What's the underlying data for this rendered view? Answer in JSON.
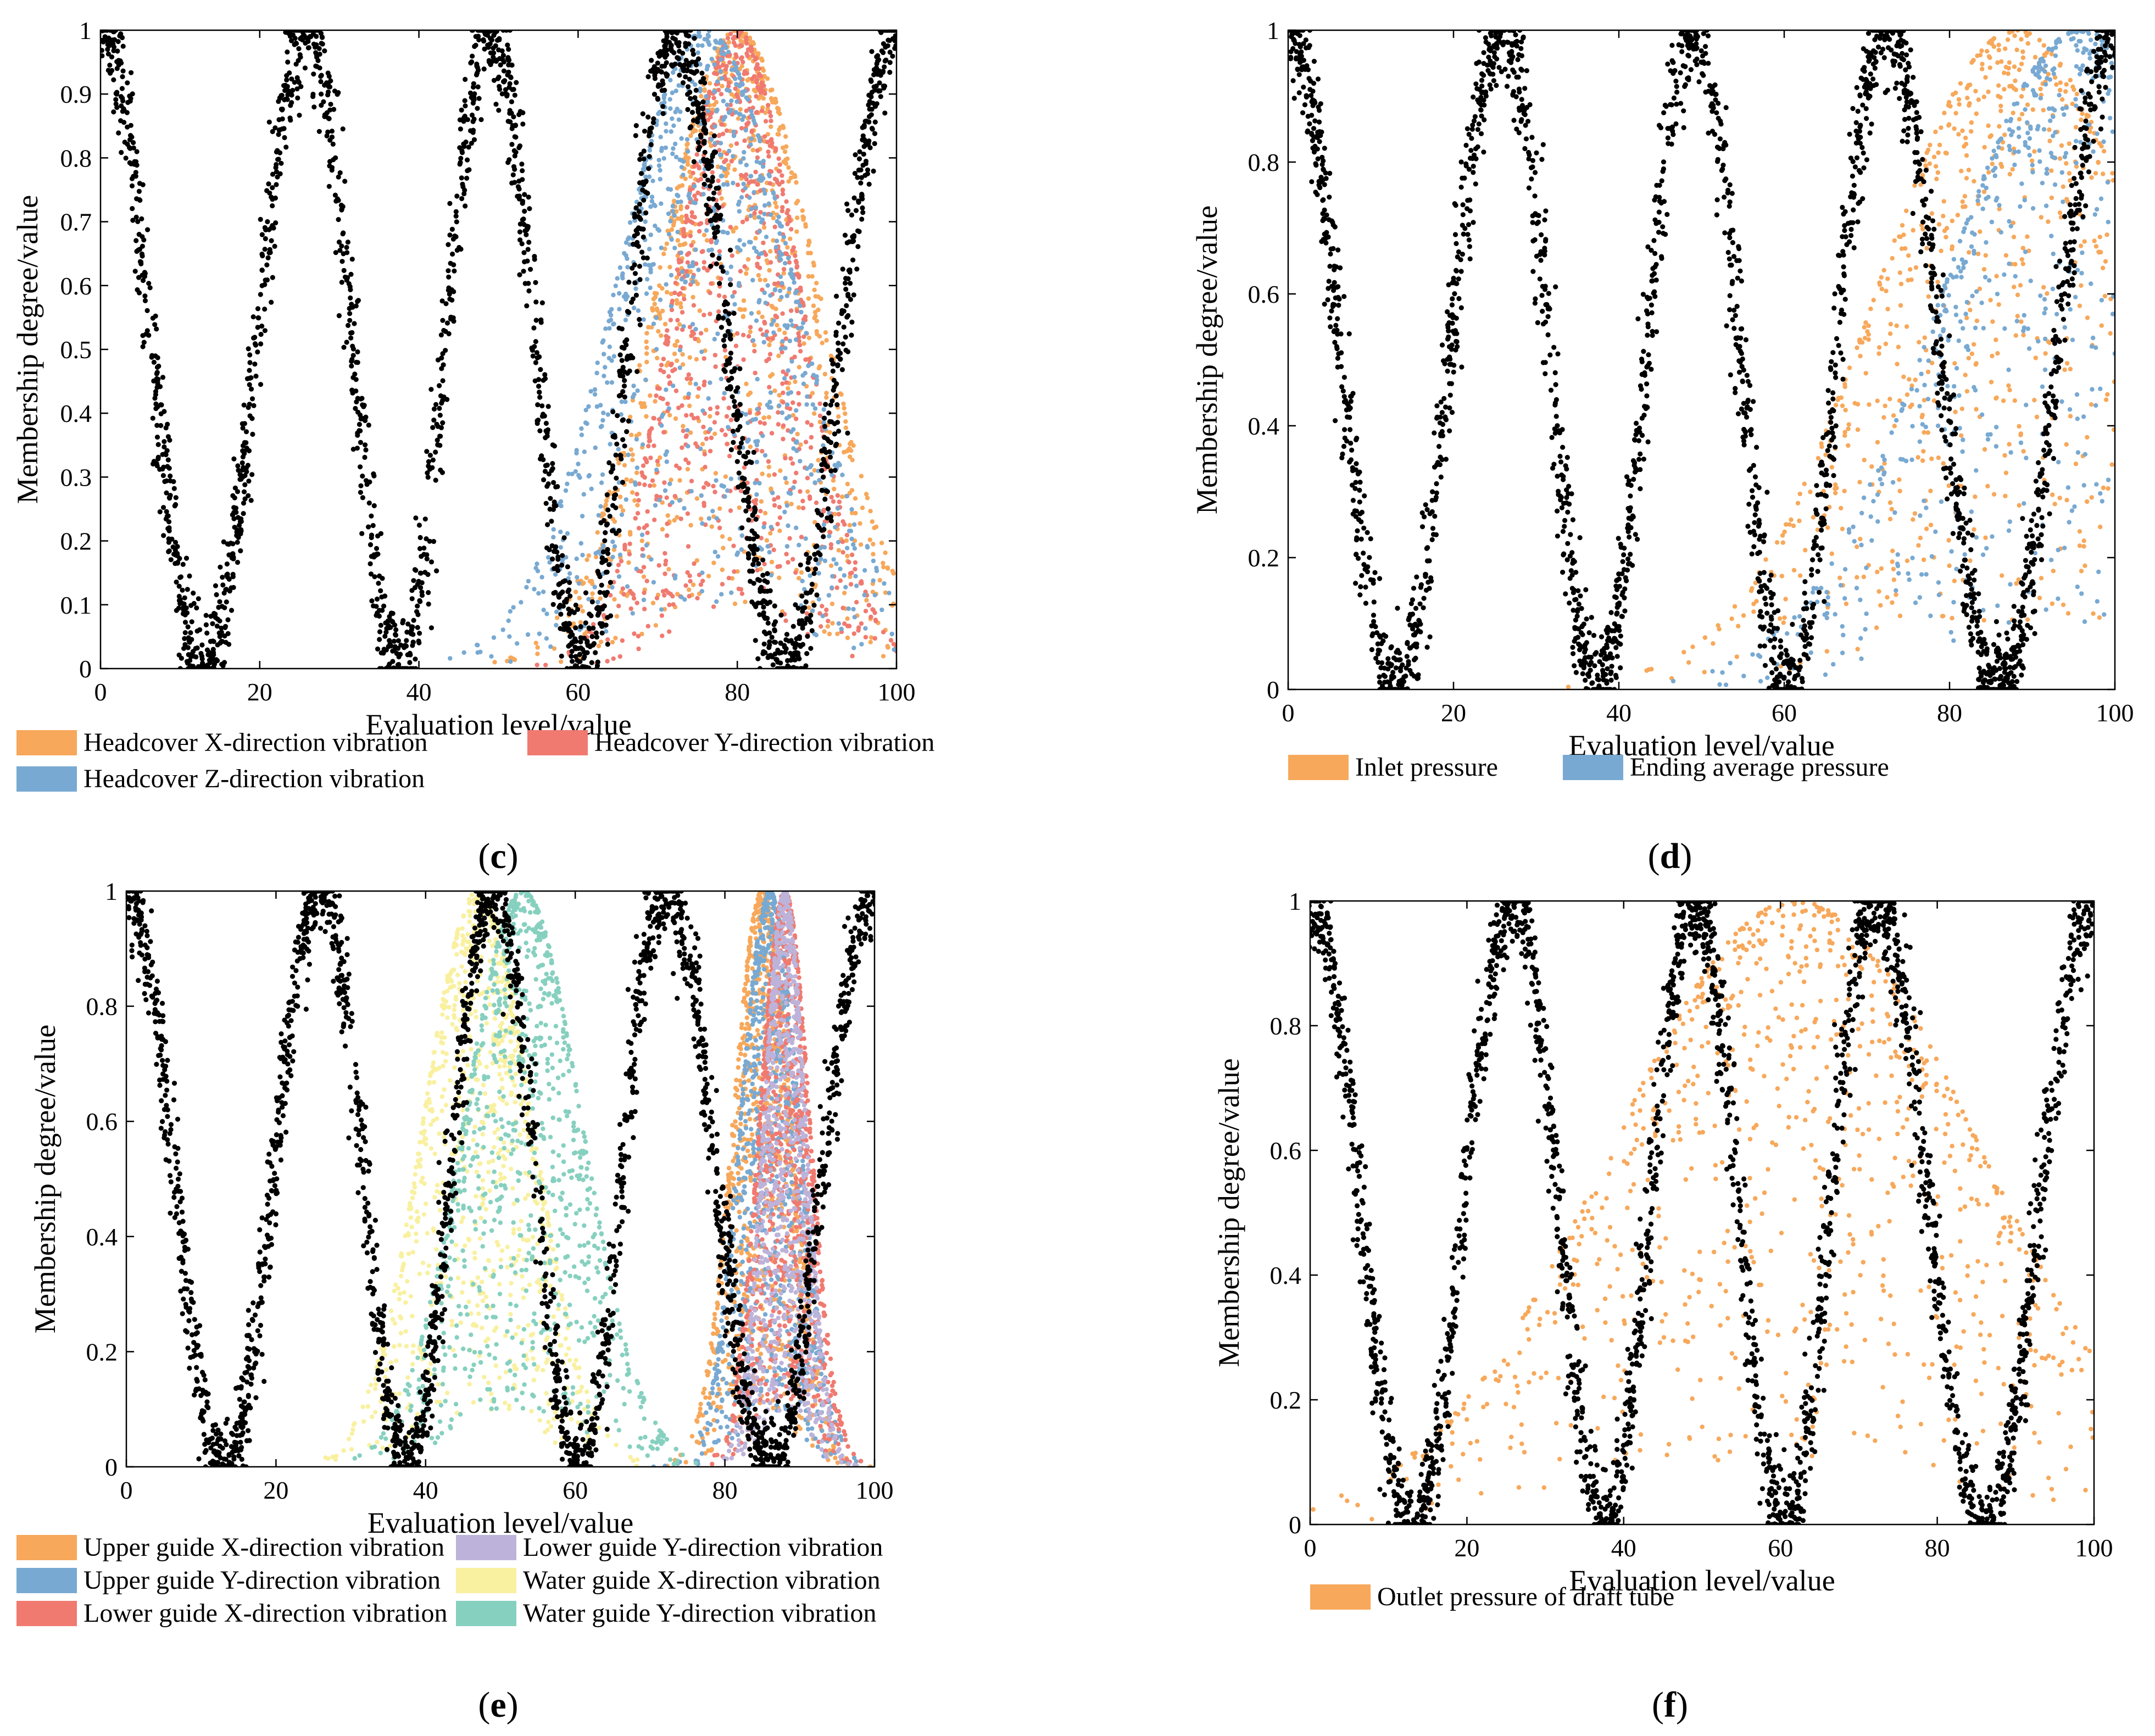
{
  "chart_data": [
    {
      "type": "scatter",
      "panel_label": "c",
      "xlabel": "Evaluation level/value",
      "ylabel": "Membership degree/value",
      "xlim": [
        0,
        100
      ],
      "ylim": [
        0,
        1
      ],
      "x_ticks": [
        "0",
        "20",
        "40",
        "60",
        "80",
        "100"
      ],
      "y_ticks": [
        "0",
        "0.1",
        "0.2",
        "0.3",
        "0.4",
        "0.5",
        "0.6",
        "0.7",
        "0.8",
        "0.9",
        "1"
      ],
      "grid": false,
      "legend_position": "bottom",
      "reference_curve": {
        "color": "#000000",
        "peaks": [
          0,
          26,
          49,
          72,
          100
        ],
        "troughs": [
          13,
          38,
          60,
          85
        ]
      },
      "series": [
        {
          "name": "Headcover X-direction vibration",
          "color": "#F7A85A",
          "center": 80,
          "spread": 18
        },
        {
          "name": "Headcover Y-direction vibration",
          "color": "#F07A70",
          "center": 80,
          "spread": 14
        },
        {
          "name": "Headcover Z-direction vibration",
          "color": "#78A9D2",
          "center": 76,
          "spread": 20
        }
      ]
    },
    {
      "type": "scatter",
      "panel_label": "d",
      "xlabel": "Evaluation level/value",
      "ylabel": "Membership degree/value",
      "xlim": [
        0,
        100
      ],
      "ylim": [
        0,
        1
      ],
      "x_ticks": [
        "0",
        "20",
        "40",
        "60",
        "80",
        "100"
      ],
      "y_ticks": [
        "0",
        "0.2",
        "0.4",
        "0.6",
        "0.8",
        "1"
      ],
      "grid": false,
      "legend_position": "bottom",
      "reference_curve": {
        "color": "#000000",
        "peaks": [
          0,
          26,
          49,
          72,
          100
        ],
        "troughs": [
          13,
          38,
          60,
          85
        ]
      },
      "series": [
        {
          "name": "Inlet pressure",
          "color": "#F7A85A",
          "center": 88,
          "spread": 30
        },
        {
          "name": "Ending average pressure",
          "color": "#78A9D2",
          "center": 96,
          "spread": 30
        }
      ]
    },
    {
      "type": "scatter",
      "panel_label": "e",
      "xlabel": "Evaluation level/value",
      "ylabel": "Membership degree/value",
      "xlim": [
        0,
        100
      ],
      "ylim": [
        0,
        1
      ],
      "x_ticks": [
        "0",
        "20",
        "40",
        "60",
        "80",
        "100"
      ],
      "y_ticks": [
        "0",
        "0.2",
        "0.4",
        "0.6",
        "0.8",
        "1"
      ],
      "grid": false,
      "legend_position": "bottom",
      "reference_curve": {
        "color": "#000000",
        "peaks": [
          0,
          26,
          49,
          72,
          100
        ],
        "troughs": [
          13,
          38,
          60,
          85
        ]
      },
      "series": [
        {
          "name": "Upper guide X-direction vibration",
          "color": "#F7A85A",
          "center": 85,
          "spread": 7
        },
        {
          "name": "Upper guide Y-direction vibration",
          "color": "#78A9D2",
          "center": 86,
          "spread": 7
        },
        {
          "name": "Lower guide X-direction vibration",
          "color": "#F07A70",
          "center": 88,
          "spread": 6
        },
        {
          "name": "Lower guide Y-direction vibration",
          "color": "#BDB3DA",
          "center": 88,
          "spread": 5
        },
        {
          "name": "Water guide X-direction vibration",
          "color": "#F9F0A0",
          "center": 47,
          "spread": 13
        },
        {
          "name": "Water guide Y-direction vibration",
          "color": "#86D0BF",
          "center": 53,
          "spread": 14
        }
      ]
    },
    {
      "type": "scatter",
      "panel_label": "f",
      "xlabel": "Evaluation level/value",
      "ylabel": "Membership degree/value",
      "xlim": [
        0,
        100
      ],
      "ylim": [
        0,
        1
      ],
      "x_ticks": [
        "0",
        "20",
        "40",
        "60",
        "80",
        "100"
      ],
      "y_ticks": [
        "0",
        "0.2",
        "0.4",
        "0.6",
        "0.8",
        "1"
      ],
      "grid": false,
      "legend_position": "bottom",
      "reference_curve": {
        "color": "#000000",
        "peaks": [
          0,
          26,
          49,
          72,
          100
        ],
        "troughs": [
          13,
          38,
          60,
          85
        ]
      },
      "series": [
        {
          "name": "Outlet pressure of draft tube",
          "color": "#F7A85A",
          "center": 62,
          "spread": 42
        }
      ]
    }
  ]
}
